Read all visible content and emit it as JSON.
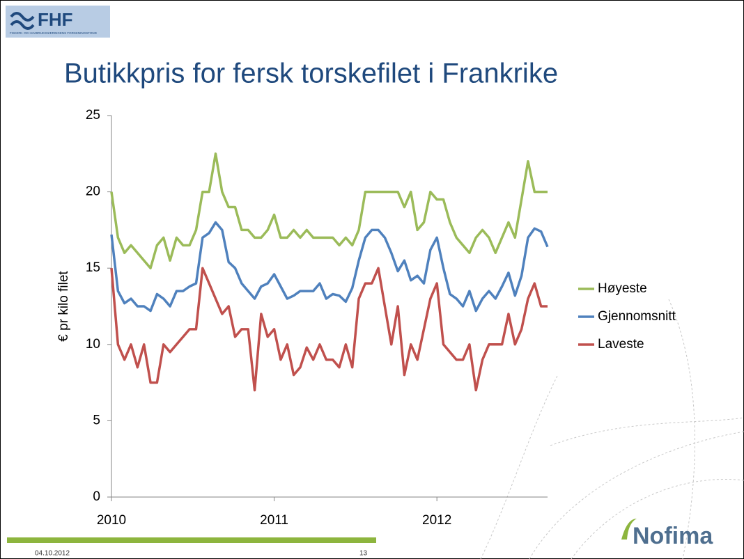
{
  "header": {
    "logo": "FHF",
    "logo_subtitle": "FISKERI- OG HAVBRUKSNÆRINGENS FORSKNINGSFOND"
  },
  "chart_data": {
    "type": "line",
    "title": "Butikkpris for fersk torskefilet i Frankrike",
    "y_label": "€ pr kilo filet",
    "x": [
      2010,
      2010.04,
      2010.08,
      2010.12,
      2010.16,
      2010.2,
      2010.24,
      2010.28,
      2010.32,
      2010.36,
      2010.4,
      2010.44,
      2010.48,
      2010.52,
      2010.56,
      2010.6,
      2010.64,
      2010.68,
      2010.72,
      2010.76,
      2010.8,
      2010.84,
      2010.88,
      2010.92,
      2010.96,
      2011,
      2011.04,
      2011.08,
      2011.12,
      2011.16,
      2011.2,
      2011.24,
      2011.28,
      2011.32,
      2011.36,
      2011.4,
      2011.44,
      2011.48,
      2011.52,
      2011.56,
      2011.6,
      2011.64,
      2011.68,
      2011.72,
      2011.76,
      2011.8,
      2011.84,
      2011.88,
      2011.92,
      2011.96,
      2012,
      2012.04,
      2012.08,
      2012.12,
      2012.16,
      2012.2,
      2012.24,
      2012.28,
      2012.32,
      2012.36,
      2012.4,
      2012.44,
      2012.48,
      2012.52,
      2012.56,
      2012.6,
      2012.64,
      2012.68
    ],
    "series": [
      {
        "name": "Høyeste",
        "color": "#9bbb59",
        "values": [
          20,
          17,
          16,
          16.5,
          16,
          15.5,
          15,
          16.5,
          17,
          15.5,
          17,
          16.5,
          16.5,
          17.5,
          20,
          20,
          22.5,
          20,
          19,
          19,
          17.5,
          17.5,
          17,
          17,
          17.5,
          18.5,
          17,
          17,
          17.5,
          17,
          17.5,
          17,
          17,
          17,
          17,
          16.5,
          17,
          16.5,
          17.5,
          20,
          20,
          20,
          20,
          20,
          20,
          19,
          20,
          17.5,
          18,
          20,
          19.5,
          19.5,
          18,
          17,
          16.5,
          16,
          17,
          17.5,
          17,
          16,
          17,
          18,
          17,
          19.5,
          22,
          20,
          20,
          20
        ]
      },
      {
        "name": "Gjennomsnitt",
        "color": "#4f81bd",
        "values": [
          17.2,
          13.5,
          12.7,
          13,
          12.5,
          12.5,
          12.2,
          13.3,
          13,
          12.5,
          13.5,
          13.5,
          13.8,
          14,
          17,
          17.3,
          18,
          17.5,
          15.4,
          15,
          14,
          13.5,
          13,
          13.8,
          14,
          14.6,
          13.8,
          13,
          13.2,
          13.5,
          13.5,
          13.5,
          14,
          13,
          13.3,
          13.2,
          12.8,
          13.7,
          15.5,
          17,
          17.5,
          17.5,
          17,
          16,
          14.8,
          15.5,
          14.2,
          14.5,
          14,
          16.2,
          17,
          15,
          13.3,
          13,
          12.5,
          13.5,
          12.2,
          13,
          13.5,
          13,
          13.8,
          14.7,
          13.2,
          14.5,
          17,
          17.6,
          17.4,
          16.4
        ]
      },
      {
        "name": "Laveste",
        "color": "#c0504d",
        "values": [
          15,
          10,
          9,
          10,
          8.5,
          10,
          7.5,
          7.5,
          10,
          9.5,
          10,
          10.5,
          11,
          11,
          15,
          14,
          13,
          12,
          12.5,
          10.5,
          11,
          11,
          7,
          12,
          10.5,
          11,
          9,
          10,
          8,
          8.5,
          9.8,
          9,
          10,
          9,
          9,
          8.5,
          10,
          8.5,
          13,
          14,
          14,
          15,
          12.5,
          10,
          12.5,
          8,
          10,
          9,
          11,
          13,
          14,
          10,
          9.5,
          9,
          9,
          10,
          7,
          9,
          10,
          10,
          10,
          12,
          10,
          11,
          13,
          14,
          12.5,
          12.5
        ]
      }
    ],
    "xlim": [
      2010,
      2012.68
    ],
    "xticks": [
      2010,
      2011,
      2012
    ],
    "ylim": [
      0,
      25
    ],
    "yticks": [
      0,
      5,
      10,
      15,
      20,
      25
    ],
    "grid": false,
    "legend": "right"
  },
  "footer": {
    "date": "04.10.2012",
    "page": "13",
    "brand": "Nofima"
  }
}
